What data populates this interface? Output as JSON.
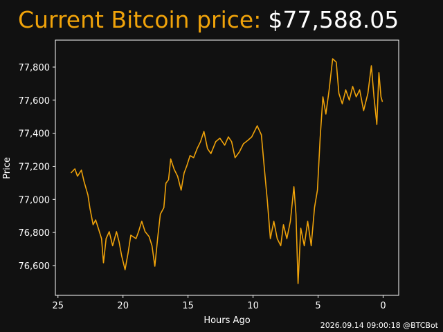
{
  "chart_data": {
    "type": "line",
    "title": "Current Bitcoin price:",
    "current_price": "$77,588.05",
    "x_label": "Hours Ago",
    "y_label": "Price",
    "footer": "2026.09.14 09:00:18 @BTCBot",
    "xlim": [
      25.2,
      -1.2
    ],
    "xticks": [
      25,
      20,
      15,
      10,
      5,
      0
    ],
    "ylim": [
      76420,
      77963
    ],
    "yticks": [
      {
        "value": 76600,
        "label": "76,600"
      },
      {
        "value": 76800,
        "label": "76,800"
      },
      {
        "value": 77000,
        "label": "77,000"
      },
      {
        "value": 77200,
        "label": "77,200"
      },
      {
        "value": 77400,
        "label": "77,400"
      },
      {
        "value": 77600,
        "label": "77,600"
      },
      {
        "value": 77800,
        "label": "77,800"
      }
    ],
    "series": [
      {
        "name": "Price",
        "color": "#f0a30a",
        "x": [
          24.0,
          23.7,
          23.5,
          23.2,
          23.0,
          22.7,
          22.55,
          22.3,
          22.1,
          21.9,
          21.65,
          21.5,
          21.3,
          21.06,
          20.8,
          20.5,
          20.3,
          20.1,
          19.84,
          19.6,
          19.4,
          19.0,
          18.8,
          18.56,
          18.3,
          18.0,
          17.77,
          17.55,
          17.34,
          17.13,
          16.86,
          16.7,
          16.5,
          16.33,
          16.06,
          15.8,
          15.53,
          15.3,
          15.1,
          14.84,
          14.57,
          14.3,
          14.04,
          13.78,
          13.5,
          13.24,
          12.87,
          12.55,
          12.18,
          11.9,
          11.65,
          11.38,
          11.06,
          10.74,
          10.4,
          10.1,
          9.68,
          9.36,
          9.1,
          8.9,
          8.67,
          8.4,
          8.14,
          7.87,
          7.66,
          7.4,
          7.13,
          6.86,
          6.7,
          6.54,
          6.33,
          6.06,
          5.8,
          5.53,
          5.27,
          5.05,
          4.84,
          4.63,
          4.4,
          4.15,
          3.88,
          3.6,
          3.4,
          3.14,
          2.87,
          2.6,
          2.34,
          2.07,
          1.8,
          1.5,
          1.17,
          0.9,
          0.7,
          0.48,
          0.32,
          0.16,
          0.05
        ],
        "values": [
          77160,
          77185,
          77140,
          77177,
          77110,
          77027,
          76950,
          76847,
          76876,
          76826,
          76763,
          76617,
          76763,
          76805,
          76720,
          76805,
          76742,
          76658,
          76575,
          76680,
          76784,
          76763,
          76805,
          76868,
          76805,
          76776,
          76720,
          76596,
          76763,
          76910,
          76950,
          77098,
          77119,
          77244,
          77181,
          77140,
          77056,
          77160,
          77202,
          77265,
          77252,
          77307,
          77349,
          77411,
          77307,
          77277,
          77349,
          77370,
          77328,
          77378,
          77349,
          77252,
          77286,
          77336,
          77357,
          77378,
          77445,
          77390,
          77160,
          76993,
          76763,
          76868,
          76763,
          76720,
          76847,
          76763,
          76868,
          77077,
          76910,
          76491,
          76826,
          76720,
          76868,
          76720,
          76951,
          77056,
          77370,
          77620,
          77516,
          77662,
          77850,
          77830,
          77641,
          77578,
          77662,
          77600,
          77683,
          77620,
          77662,
          77537,
          77641,
          77808,
          77620,
          77453,
          77767,
          77620,
          77590
        ]
      }
    ]
  }
}
